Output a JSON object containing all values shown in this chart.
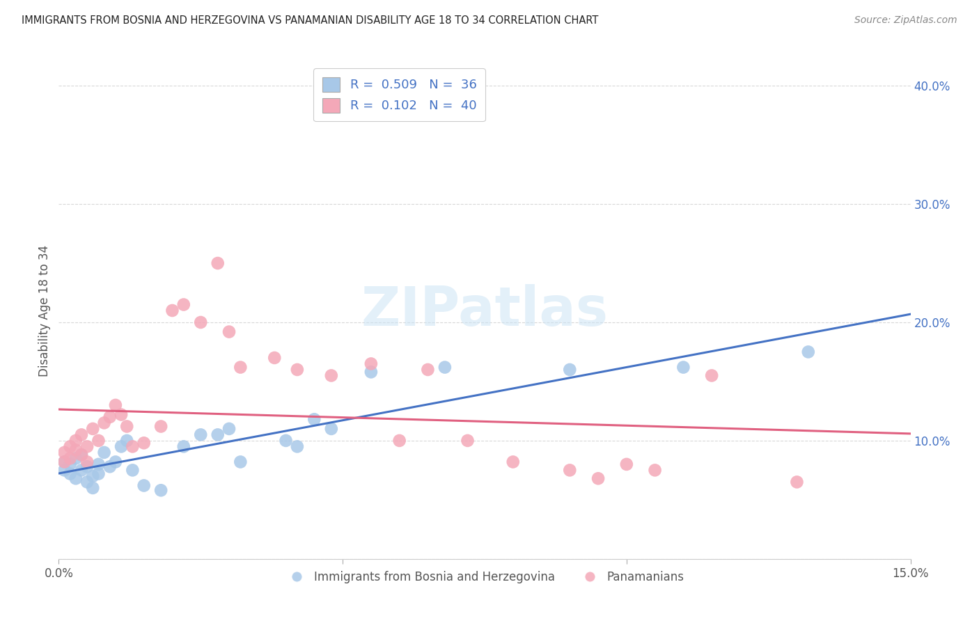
{
  "title": "IMMIGRANTS FROM BOSNIA AND HERZEGOVINA VS PANAMANIAN DISABILITY AGE 18 TO 34 CORRELATION CHART",
  "source": "Source: ZipAtlas.com",
  "ylabel": "Disability Age 18 to 34",
  "xlim": [
    0.0,
    0.15
  ],
  "ylim": [
    0.0,
    0.42
  ],
  "xticks": [
    0.0,
    0.05,
    0.1,
    0.15
  ],
  "xtick_labels": [
    "0.0%",
    "",
    "",
    "15.0%"
  ],
  "yticks_right": [
    0.0,
    0.1,
    0.2,
    0.3,
    0.4
  ],
  "ytick_right_labels": [
    "",
    "10.0%",
    "20.0%",
    "30.0%",
    "40.0%"
  ],
  "blue_color": "#a8c8e8",
  "pink_color": "#f4a8b8",
  "blue_line_color": "#4472c4",
  "pink_line_color": "#e06080",
  "legend_text_color": "#4472c4",
  "title_color": "#222222",
  "source_color": "#888888",
  "grid_color": "#d8d8d8",
  "legend_label_blue": "Immigrants from Bosnia and Herzegovina",
  "legend_label_pink": "Panamanians",
  "blue_R": 0.509,
  "pink_R": 0.102,
  "blue_N": 36,
  "pink_N": 40,
  "blue_scatter_x": [
    0.001,
    0.001,
    0.002,
    0.002,
    0.003,
    0.003,
    0.004,
    0.004,
    0.005,
    0.005,
    0.006,
    0.006,
    0.007,
    0.007,
    0.008,
    0.009,
    0.01,
    0.011,
    0.012,
    0.013,
    0.015,
    0.018,
    0.022,
    0.025,
    0.028,
    0.03,
    0.032,
    0.04,
    0.042,
    0.045,
    0.048,
    0.055,
    0.068,
    0.09,
    0.11,
    0.132
  ],
  "blue_scatter_y": [
    0.082,
    0.075,
    0.08,
    0.072,
    0.085,
    0.068,
    0.088,
    0.075,
    0.078,
    0.065,
    0.07,
    0.06,
    0.08,
    0.072,
    0.09,
    0.078,
    0.082,
    0.095,
    0.1,
    0.075,
    0.062,
    0.058,
    0.095,
    0.105,
    0.105,
    0.11,
    0.082,
    0.1,
    0.095,
    0.118,
    0.11,
    0.158,
    0.162,
    0.16,
    0.162,
    0.175
  ],
  "pink_scatter_x": [
    0.001,
    0.001,
    0.002,
    0.002,
    0.003,
    0.003,
    0.004,
    0.004,
    0.005,
    0.005,
    0.006,
    0.007,
    0.008,
    0.009,
    0.01,
    0.011,
    0.012,
    0.013,
    0.015,
    0.018,
    0.02,
    0.022,
    0.025,
    0.028,
    0.03,
    0.032,
    0.038,
    0.042,
    0.048,
    0.055,
    0.06,
    0.065,
    0.072,
    0.08,
    0.09,
    0.095,
    0.1,
    0.105,
    0.115,
    0.13
  ],
  "pink_scatter_y": [
    0.09,
    0.082,
    0.095,
    0.085,
    0.092,
    0.1,
    0.088,
    0.105,
    0.082,
    0.095,
    0.11,
    0.1,
    0.115,
    0.12,
    0.13,
    0.122,
    0.112,
    0.095,
    0.098,
    0.112,
    0.21,
    0.215,
    0.2,
    0.25,
    0.192,
    0.162,
    0.17,
    0.16,
    0.155,
    0.165,
    0.1,
    0.16,
    0.1,
    0.082,
    0.075,
    0.068,
    0.08,
    0.075,
    0.155,
    0.065
  ]
}
